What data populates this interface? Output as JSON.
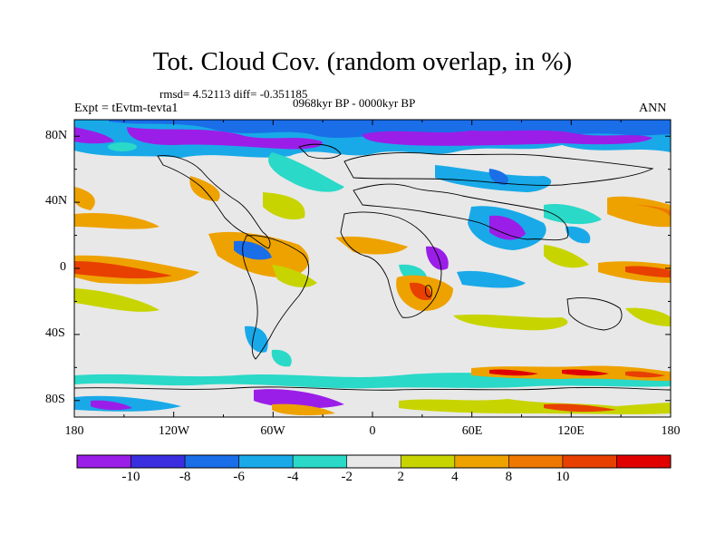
{
  "title": "Tot. Cloud Cov. (random overlap, in %)",
  "stats": "rmsd= 4.52113 diff= -0.351185",
  "period": "0968kyr BP - 0000kyr BP",
  "experiment": "Expt = tEvtm-tevta1",
  "season": "ANN",
  "lat_labels": [
    "80N",
    "40N",
    "0",
    "40S",
    "80S"
  ],
  "lon_labels": [
    "180",
    "120W",
    "60W",
    "0",
    "60E",
    "120E",
    "180"
  ],
  "colorbar": {
    "labels": [
      "-10",
      "-8",
      "-6",
      "-4",
      "-2",
      "2",
      "4",
      "8",
      "10"
    ],
    "colors": [
      "#9b1ee8",
      "#3a2ee0",
      "#1a6ee8",
      "#19a9e8",
      "#2ad9c8",
      "#e8e8e8",
      "#c8d400",
      "#eea200",
      "#ee7800",
      "#e84000",
      "#e00000"
    ]
  },
  "map_data": {
    "variable": "Total cloud cover difference (random overlap)",
    "units": "%",
    "projection": "cylindrical equidistant",
    "lon_range": [
      -180,
      180
    ],
    "lat_range": [
      -90,
      90
    ],
    "levels": [
      -10,
      -8,
      -6,
      -4,
      -2,
      2,
      4,
      8,
      10
    ]
  }
}
